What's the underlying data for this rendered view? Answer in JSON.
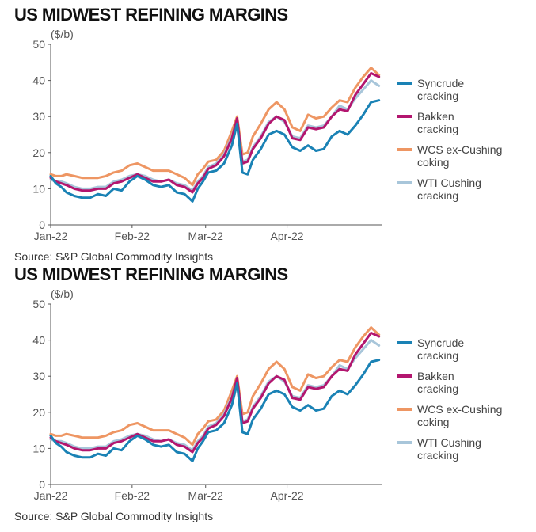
{
  "charts": [
    {
      "title": "US MIDWEST REFINING MARGINS",
      "source": "Source: S&P Global Commodity Insights",
      "chart_data": {
        "type": "line",
        "ylabel": "($/b)",
        "ylim": [
          0,
          50
        ],
        "yticks": [
          0,
          10,
          20,
          30,
          40,
          50
        ],
        "xticks": [
          "Jan-22",
          "Feb-22",
          "Mar-22",
          "Apr-22"
        ],
        "x_range": [
          "2022-01-01",
          "2022-05-07"
        ],
        "grid": false,
        "legend_position": "right",
        "series": [
          {
            "name": "Syncrude cracking",
            "color": "#1a82b5",
            "x": [
              "2022-01-01",
              "2022-01-03",
              "2022-01-05",
              "2022-01-07",
              "2022-01-10",
              "2022-01-13",
              "2022-01-16",
              "2022-01-19",
              "2022-01-22",
              "2022-01-25",
              "2022-01-28",
              "2022-01-31",
              "2022-02-03",
              "2022-02-06",
              "2022-02-09",
              "2022-02-12",
              "2022-02-15",
              "2022-02-18",
              "2022-02-21",
              "2022-02-24",
              "2022-02-26",
              "2022-02-28",
              "2022-03-02",
              "2022-03-05",
              "2022-03-08",
              "2022-03-11",
              "2022-03-13",
              "2022-03-15",
              "2022-03-17",
              "2022-03-19",
              "2022-03-22",
              "2022-03-25",
              "2022-03-28",
              "2022-03-31",
              "2022-04-03",
              "2022-04-06",
              "2022-04-09",
              "2022-04-12",
              "2022-04-15",
              "2022-04-18",
              "2022-04-21",
              "2022-04-24",
              "2022-04-27",
              "2022-04-30",
              "2022-05-03",
              "2022-05-06"
            ],
            "values": [
              13.5,
              11.5,
              10.5,
              9,
              8,
              7.5,
              7.5,
              8.5,
              8,
              10,
              9.5,
              12,
              13.5,
              12.5,
              11,
              10.5,
              11,
              9,
              8.5,
              6.5,
              10,
              12,
              14.5,
              15,
              17,
              22,
              28,
              14.5,
              14,
              18,
              21,
              25,
              26,
              25,
              21.5,
              20.5,
              22,
              20.5,
              21,
              24.5,
              26,
              25,
              27.5,
              30.5,
              34,
              34.5
            ]
          },
          {
            "name": "Bakken cracking",
            "color": "#b3166f",
            "x": [
              "2022-01-01",
              "2022-01-03",
              "2022-01-05",
              "2022-01-07",
              "2022-01-10",
              "2022-01-13",
              "2022-01-16",
              "2022-01-19",
              "2022-01-22",
              "2022-01-25",
              "2022-01-28",
              "2022-01-31",
              "2022-02-03",
              "2022-02-06",
              "2022-02-09",
              "2022-02-12",
              "2022-02-15",
              "2022-02-18",
              "2022-02-21",
              "2022-02-24",
              "2022-02-26",
              "2022-02-28",
              "2022-03-02",
              "2022-03-05",
              "2022-03-08",
              "2022-03-11",
              "2022-03-13",
              "2022-03-15",
              "2022-03-17",
              "2022-03-19",
              "2022-03-22",
              "2022-03-25",
              "2022-03-28",
              "2022-03-31",
              "2022-04-03",
              "2022-04-06",
              "2022-04-09",
              "2022-04-12",
              "2022-04-15",
              "2022-04-18",
              "2022-04-21",
              "2022-04-24",
              "2022-04-27",
              "2022-04-30",
              "2022-05-03",
              "2022-05-06"
            ],
            "values": [
              13,
              12,
              11.5,
              11,
              10,
              9.5,
              9.5,
              10,
              10,
              11.5,
              12,
              13,
              14,
              13,
              12,
              12,
              12.5,
              11,
              10.5,
              9,
              11.5,
              13,
              15.5,
              16.5,
              19,
              24,
              29.5,
              17,
              17.5,
              21,
              24,
              28,
              30,
              29,
              24,
              23.5,
              27,
              26.5,
              27,
              30,
              32,
              31.5,
              36,
              39,
              42,
              41
            ]
          },
          {
            "name": "WCS ex-Cushing coking",
            "color": "#ee9663",
            "x": [
              "2022-01-01",
              "2022-01-03",
              "2022-01-05",
              "2022-01-07",
              "2022-01-10",
              "2022-01-13",
              "2022-01-16",
              "2022-01-19",
              "2022-01-22",
              "2022-01-25",
              "2022-01-28",
              "2022-01-31",
              "2022-02-03",
              "2022-02-06",
              "2022-02-09",
              "2022-02-12",
              "2022-02-15",
              "2022-02-18",
              "2022-02-21",
              "2022-02-24",
              "2022-02-26",
              "2022-02-28",
              "2022-03-02",
              "2022-03-05",
              "2022-03-08",
              "2022-03-11",
              "2022-03-13",
              "2022-03-15",
              "2022-03-17",
              "2022-03-19",
              "2022-03-22",
              "2022-03-25",
              "2022-03-28",
              "2022-03-31",
              "2022-04-03",
              "2022-04-06",
              "2022-04-09",
              "2022-04-12",
              "2022-04-15",
              "2022-04-18",
              "2022-04-21",
              "2022-04-24",
              "2022-04-27",
              "2022-04-30",
              "2022-05-03",
              "2022-05-06"
            ],
            "values": [
              14,
              13.5,
              13.5,
              14,
              13.5,
              13,
              13,
              13,
              13.5,
              14.5,
              15,
              16.5,
              17,
              16,
              15,
              15,
              15,
              14,
              13,
              11,
              14,
              15.5,
              17.5,
              18,
              20.5,
              26,
              30,
              19.5,
              20,
              24.5,
              28,
              32,
              34,
              32,
              27,
              26,
              30.5,
              29.5,
              30,
              32.5,
              34.5,
              34,
              38,
              41,
              43.5,
              41.5
            ]
          },
          {
            "name": "WTI Cushing cracking",
            "color": "#a8c6da",
            "x": [
              "2022-01-01",
              "2022-01-03",
              "2022-01-05",
              "2022-01-07",
              "2022-01-10",
              "2022-01-13",
              "2022-01-16",
              "2022-01-19",
              "2022-01-22",
              "2022-01-25",
              "2022-01-28",
              "2022-01-31",
              "2022-02-03",
              "2022-02-06",
              "2022-02-09",
              "2022-02-12",
              "2022-02-15",
              "2022-02-18",
              "2022-02-21",
              "2022-02-24",
              "2022-02-26",
              "2022-02-28",
              "2022-03-02",
              "2022-03-05",
              "2022-03-08",
              "2022-03-11",
              "2022-03-13",
              "2022-03-15",
              "2022-03-17",
              "2022-03-19",
              "2022-03-22",
              "2022-03-25",
              "2022-03-28",
              "2022-03-31",
              "2022-04-03",
              "2022-04-06",
              "2022-04-09",
              "2022-04-12",
              "2022-04-15",
              "2022-04-18",
              "2022-04-21",
              "2022-04-24",
              "2022-04-27",
              "2022-04-30",
              "2022-05-03",
              "2022-05-06"
            ],
            "values": [
              12.5,
              12,
              12,
              11.5,
              10.5,
              10,
              10,
              10.5,
              10.5,
              12,
              12.5,
              13.5,
              14,
              13.5,
              12.5,
              12,
              12.5,
              11.5,
              11,
              9.5,
              12,
              13.5,
              16,
              17,
              19.5,
              24.5,
              29,
              17.5,
              18,
              21.5,
              24.5,
              28.5,
              30,
              28.5,
              24.5,
              24,
              27.5,
              27,
              27.5,
              30,
              33,
              32,
              35,
              37.5,
              40,
              38.5
            ]
          }
        ]
      }
    },
    {
      "title": "US MIDWEST REFINING MARGINS",
      "source": "Source: S&P Global Commodity Insights",
      "chart_data": {
        "type": "line",
        "ylabel": "($/b)",
        "ylim": [
          0,
          50
        ],
        "yticks": [
          0,
          10,
          20,
          30,
          40,
          50
        ],
        "xticks": [
          "Jan-22",
          "Feb-22",
          "Mar-22",
          "Apr-22"
        ],
        "x_range": [
          "2022-01-01",
          "2022-05-07"
        ],
        "grid": false,
        "legend_position": "right",
        "series": [
          {
            "name": "Syncrude cracking",
            "color": "#1a82b5",
            "x": [
              "2022-01-01",
              "2022-01-03",
              "2022-01-05",
              "2022-01-07",
              "2022-01-10",
              "2022-01-13",
              "2022-01-16",
              "2022-01-19",
              "2022-01-22",
              "2022-01-25",
              "2022-01-28",
              "2022-01-31",
              "2022-02-03",
              "2022-02-06",
              "2022-02-09",
              "2022-02-12",
              "2022-02-15",
              "2022-02-18",
              "2022-02-21",
              "2022-02-24",
              "2022-02-26",
              "2022-02-28",
              "2022-03-02",
              "2022-03-05",
              "2022-03-08",
              "2022-03-11",
              "2022-03-13",
              "2022-03-15",
              "2022-03-17",
              "2022-03-19",
              "2022-03-22",
              "2022-03-25",
              "2022-03-28",
              "2022-03-31",
              "2022-04-03",
              "2022-04-06",
              "2022-04-09",
              "2022-04-12",
              "2022-04-15",
              "2022-04-18",
              "2022-04-21",
              "2022-04-24",
              "2022-04-27",
              "2022-04-30",
              "2022-05-03",
              "2022-05-06"
            ],
            "values": [
              13.5,
              11.5,
              10.5,
              9,
              8,
              7.5,
              7.5,
              8.5,
              8,
              10,
              9.5,
              12,
              13.5,
              12.5,
              11,
              10.5,
              11,
              9,
              8.5,
              6.5,
              10,
              12,
              14.5,
              15,
              17,
              22,
              28,
              14.5,
              14,
              18,
              21,
              25,
              26,
              25,
              21.5,
              20.5,
              22,
              20.5,
              21,
              24.5,
              26,
              25,
              27.5,
              30.5,
              34,
              34.5
            ]
          },
          {
            "name": "Bakken cracking",
            "color": "#b3166f",
            "x": [
              "2022-01-01",
              "2022-01-03",
              "2022-01-05",
              "2022-01-07",
              "2022-01-10",
              "2022-01-13",
              "2022-01-16",
              "2022-01-19",
              "2022-01-22",
              "2022-01-25",
              "2022-01-28",
              "2022-01-31",
              "2022-02-03",
              "2022-02-06",
              "2022-02-09",
              "2022-02-12",
              "2022-02-15",
              "2022-02-18",
              "2022-02-21",
              "2022-02-24",
              "2022-02-26",
              "2022-02-28",
              "2022-03-02",
              "2022-03-05",
              "2022-03-08",
              "2022-03-11",
              "2022-03-13",
              "2022-03-15",
              "2022-03-17",
              "2022-03-19",
              "2022-03-22",
              "2022-03-25",
              "2022-03-28",
              "2022-03-31",
              "2022-04-03",
              "2022-04-06",
              "2022-04-09",
              "2022-04-12",
              "2022-04-15",
              "2022-04-18",
              "2022-04-21",
              "2022-04-24",
              "2022-04-27",
              "2022-04-30",
              "2022-05-03",
              "2022-05-06"
            ],
            "values": [
              13,
              12,
              11.5,
              11,
              10,
              9.5,
              9.5,
              10,
              10,
              11.5,
              12,
              13,
              14,
              13,
              12,
              12,
              12.5,
              11,
              10.5,
              9,
              11.5,
              13,
              15.5,
              16.5,
              19,
              24,
              29.5,
              17,
              17.5,
              21,
              24,
              28,
              30,
              29,
              24,
              23.5,
              27,
              26.5,
              27,
              30,
              32,
              31.5,
              36,
              39,
              42,
              41
            ]
          },
          {
            "name": "WCS ex-Cushing coking",
            "color": "#ee9663",
            "x": [
              "2022-01-01",
              "2022-01-03",
              "2022-01-05",
              "2022-01-07",
              "2022-01-10",
              "2022-01-13",
              "2022-01-16",
              "2022-01-19",
              "2022-01-22",
              "2022-01-25",
              "2022-01-28",
              "2022-01-31",
              "2022-02-03",
              "2022-02-06",
              "2022-02-09",
              "2022-02-12",
              "2022-02-15",
              "2022-02-18",
              "2022-02-21",
              "2022-02-24",
              "2022-02-26",
              "2022-02-28",
              "2022-03-02",
              "2022-03-05",
              "2022-03-08",
              "2022-03-11",
              "2022-03-13",
              "2022-03-15",
              "2022-03-17",
              "2022-03-19",
              "2022-03-22",
              "2022-03-25",
              "2022-03-28",
              "2022-03-31",
              "2022-04-03",
              "2022-04-06",
              "2022-04-09",
              "2022-04-12",
              "2022-04-15",
              "2022-04-18",
              "2022-04-21",
              "2022-04-24",
              "2022-04-27",
              "2022-04-30",
              "2022-05-03",
              "2022-05-06"
            ],
            "values": [
              14,
              13.5,
              13.5,
              14,
              13.5,
              13,
              13,
              13,
              13.5,
              14.5,
              15,
              16.5,
              17,
              16,
              15,
              15,
              15,
              14,
              13,
              11,
              14,
              15.5,
              17.5,
              18,
              20.5,
              26,
              30,
              19.5,
              20,
              24.5,
              28,
              32,
              34,
              32,
              27,
              26,
              30.5,
              29.5,
              30,
              32.5,
              34.5,
              34,
              38,
              41,
              43.5,
              41.5
            ]
          },
          {
            "name": "WTI Cushing cracking",
            "color": "#a8c6da",
            "x": [
              "2022-01-01",
              "2022-01-03",
              "2022-01-05",
              "2022-01-07",
              "2022-01-10",
              "2022-01-13",
              "2022-01-16",
              "2022-01-19",
              "2022-01-22",
              "2022-01-25",
              "2022-01-28",
              "2022-01-31",
              "2022-02-03",
              "2022-02-06",
              "2022-02-09",
              "2022-02-12",
              "2022-02-15",
              "2022-02-18",
              "2022-02-21",
              "2022-02-24",
              "2022-02-26",
              "2022-02-28",
              "2022-03-02",
              "2022-03-05",
              "2022-03-08",
              "2022-03-11",
              "2022-03-13",
              "2022-03-15",
              "2022-03-17",
              "2022-03-19",
              "2022-03-22",
              "2022-03-25",
              "2022-03-28",
              "2022-03-31",
              "2022-04-03",
              "2022-04-06",
              "2022-04-09",
              "2022-04-12",
              "2022-04-15",
              "2022-04-18",
              "2022-04-21",
              "2022-04-24",
              "2022-04-27",
              "2022-04-30",
              "2022-05-03",
              "2022-05-06"
            ],
            "values": [
              12.5,
              12,
              12,
              11.5,
              10.5,
              10,
              10,
              10.5,
              10.5,
              12,
              12.5,
              13.5,
              14,
              13.5,
              12.5,
              12,
              12.5,
              11.5,
              11,
              9.5,
              12,
              13.5,
              16,
              17,
              19.5,
              24.5,
              29,
              17.5,
              18,
              21.5,
              24.5,
              28.5,
              30,
              28.5,
              24.5,
              24,
              27.5,
              27,
              27.5,
              30,
              33,
              32,
              35,
              37.5,
              40,
              38.5
            ]
          }
        ]
      }
    }
  ]
}
